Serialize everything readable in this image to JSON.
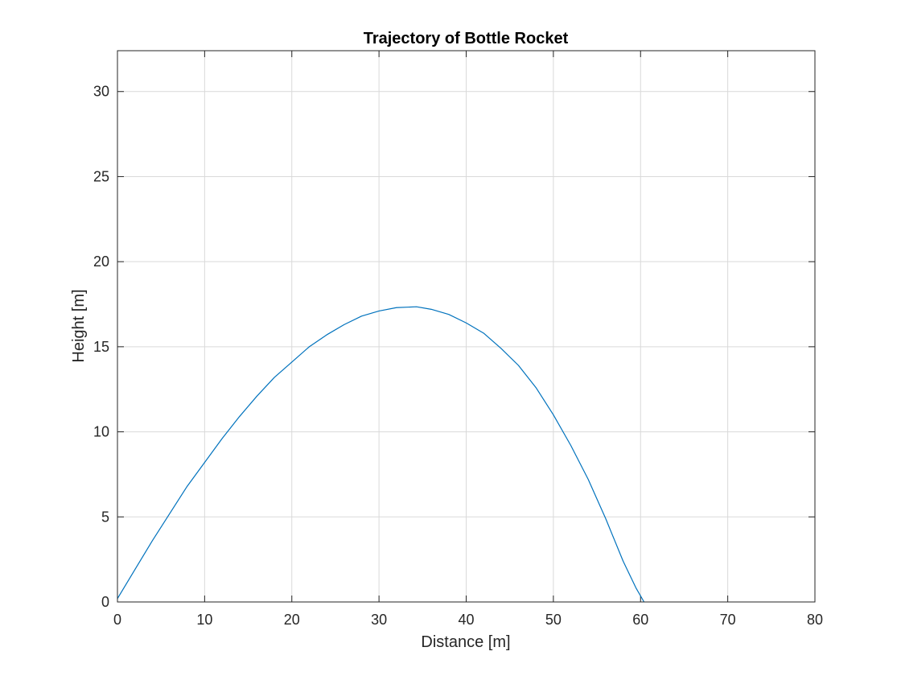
{
  "chart_data": {
    "type": "line",
    "title": "Trajectory of Bottle Rocket",
    "xlabel": "Distance [m]",
    "ylabel": "Height [m]",
    "xlim": [
      0,
      80
    ],
    "ylim": [
      0,
      32.4
    ],
    "xticks": [
      0,
      10,
      20,
      30,
      40,
      50,
      60,
      70,
      80
    ],
    "xtick_labels": [
      "0",
      "10",
      "20",
      "30",
      "40",
      "50",
      "60",
      "70",
      "80"
    ],
    "yticks": [
      0,
      5,
      10,
      15,
      20,
      25,
      30
    ],
    "ytick_labels": [
      "0",
      "5",
      "10",
      "15",
      "20",
      "25",
      "30"
    ],
    "grid": true,
    "legend": "none",
    "colors": {
      "series": "#0072BD",
      "axes": "#262626",
      "grid": "#d9d9d9"
    },
    "series": [
      {
        "x": [
          0,
          2,
          4,
          6,
          8,
          10,
          12,
          14,
          16,
          18,
          20,
          22,
          24,
          26,
          28,
          30,
          32,
          34.3,
          36,
          38,
          40,
          42,
          44,
          46,
          48,
          50,
          52,
          54,
          56,
          58,
          59.5,
          60.4
        ],
        "y": [
          0.2,
          1.9,
          3.6,
          5.2,
          6.8,
          8.2,
          9.6,
          10.9,
          12.1,
          13.2,
          14.1,
          15.0,
          15.7,
          16.3,
          16.8,
          17.1,
          17.3,
          17.35,
          17.2,
          16.9,
          16.4,
          15.8,
          14.9,
          13.9,
          12.6,
          11.0,
          9.2,
          7.2,
          4.9,
          2.4,
          0.8,
          0.0
        ]
      }
    ]
  }
}
